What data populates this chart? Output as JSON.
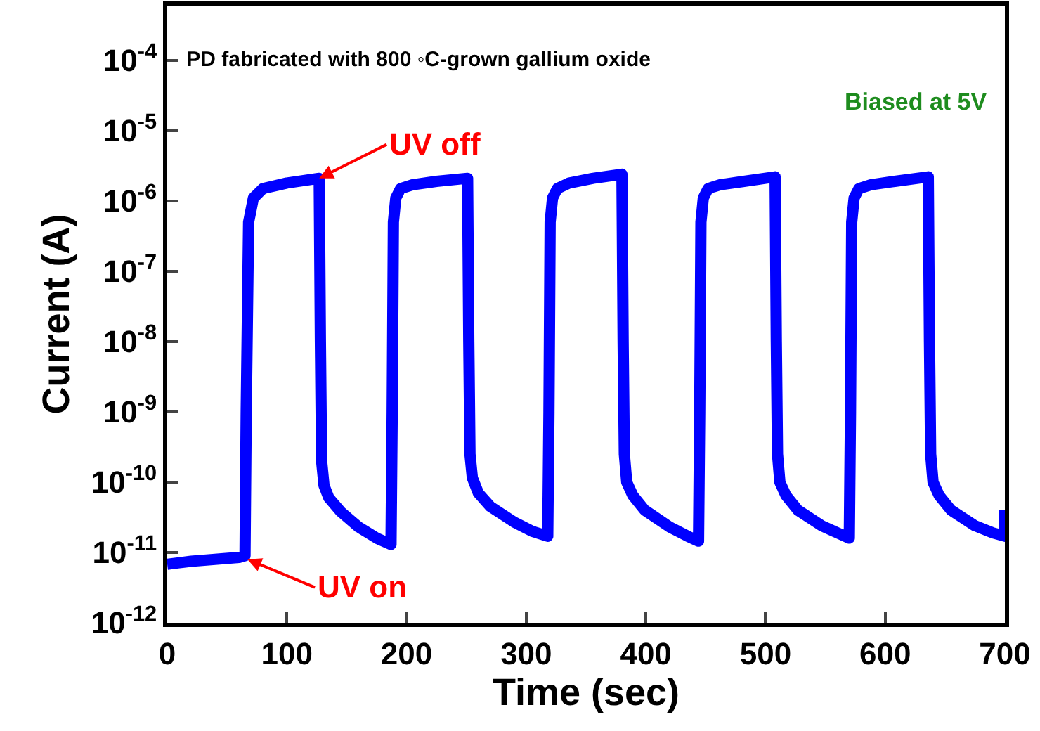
{
  "chart_data": {
    "type": "line",
    "title": "PD fabricated with 800 ◦C-grown gallium oxide",
    "xlabel": "Time (sec)",
    "ylabel": "Current (A)",
    "annotations": [
      "Biased at 5V",
      {
        "text": "UV off",
        "x": 127,
        "y": 2.1e-06
      },
      {
        "text": "UV on",
        "x": 67,
        "y": 8e-12
      }
    ],
    "series": [
      {
        "color": "#0000ff",
        "x": [
          0,
          20,
          40,
          60,
          65,
          66,
          68,
          72,
          80,
          100,
          127,
          128,
          129,
          131,
          135,
          145,
          160,
          175,
          187,
          188,
          189,
          191,
          195,
          205,
          225,
          251,
          252,
          253,
          255,
          260,
          270,
          290,
          305,
          318,
          319,
          320,
          322,
          326,
          336,
          356,
          380,
          381,
          382,
          384,
          389,
          399,
          420,
          435,
          444,
          445,
          446,
          448,
          452,
          462,
          482,
          508,
          509,
          510,
          512,
          517,
          527,
          547,
          560,
          570,
          571,
          572,
          574,
          578,
          588,
          608,
          636,
          637,
          638,
          640,
          645,
          655,
          675,
          690,
          700,
          700
        ],
        "values": [
          6.8e-12,
          7.5e-12,
          8e-12,
          8.5e-12,
          9e-12,
          1e-09,
          5e-07,
          1.1e-06,
          1.5e-06,
          1.8e-06,
          2.1e-06,
          1e-08,
          2e-10,
          9e-11,
          6e-11,
          3.8e-11,
          2.3e-11,
          1.6e-11,
          1.3e-11,
          1e-09,
          5e-07,
          1.1e-06,
          1.5e-06,
          1.7e-06,
          1.9e-06,
          2.1e-06,
          1e-08,
          2.5e-10,
          1.15e-10,
          7e-11,
          4.5e-11,
          2.7e-11,
          2e-11,
          1.7e-11,
          1e-09,
          5e-07,
          1.1e-06,
          1.5e-06,
          1.8e-06,
          2.1e-06,
          2.4e-06,
          1e-08,
          2.5e-10,
          1e-10,
          6.5e-11,
          4e-11,
          2.3e-11,
          1.7e-11,
          1.45e-11,
          1e-09,
          5e-07,
          1.1e-06,
          1.5e-06,
          1.7e-06,
          1.9e-06,
          2.2e-06,
          1e-08,
          2.5e-10,
          1e-10,
          6.5e-11,
          4e-11,
          2.4e-11,
          1.9e-11,
          1.6e-11,
          1e-09,
          5e-07,
          1.1e-06,
          1.5e-06,
          1.7e-06,
          1.9e-06,
          2.2e-06,
          1e-08,
          2.5e-10,
          1e-10,
          6.5e-11,
          4e-11,
          2.4e-11,
          1.9e-11,
          1.7e-11,
          4e-11
        ]
      }
    ],
    "xlim": [
      0,
      700
    ],
    "xticks": [
      0,
      100,
      200,
      300,
      400,
      500,
      600,
      700
    ],
    "ylim": [
      1e-12,
      0.0006
    ],
    "log": true,
    "yticks": [
      {
        "value": 1e-12,
        "label": "10$^{-12}$"
      },
      {
        "value": 1e-11,
        "label": "10$^{-11}$"
      },
      {
        "value": 1e-10,
        "label": "10$^{-10}$"
      },
      {
        "value": 1e-09,
        "label": "10$^{-9}$"
      },
      {
        "value": 1e-08,
        "label": "10$^{-8}$"
      },
      {
        "value": 1e-07,
        "label": "10$^{-7}$"
      },
      {
        "value": 1e-06,
        "label": "10$^{-6}$"
      },
      {
        "value": 1e-05,
        "label": "10$^{-5}$"
      },
      {
        "value": 0.0001,
        "label": "10$^{-4}$"
      }
    ],
    "grid": false,
    "marker": "none",
    "line_style": "solid"
  }
}
